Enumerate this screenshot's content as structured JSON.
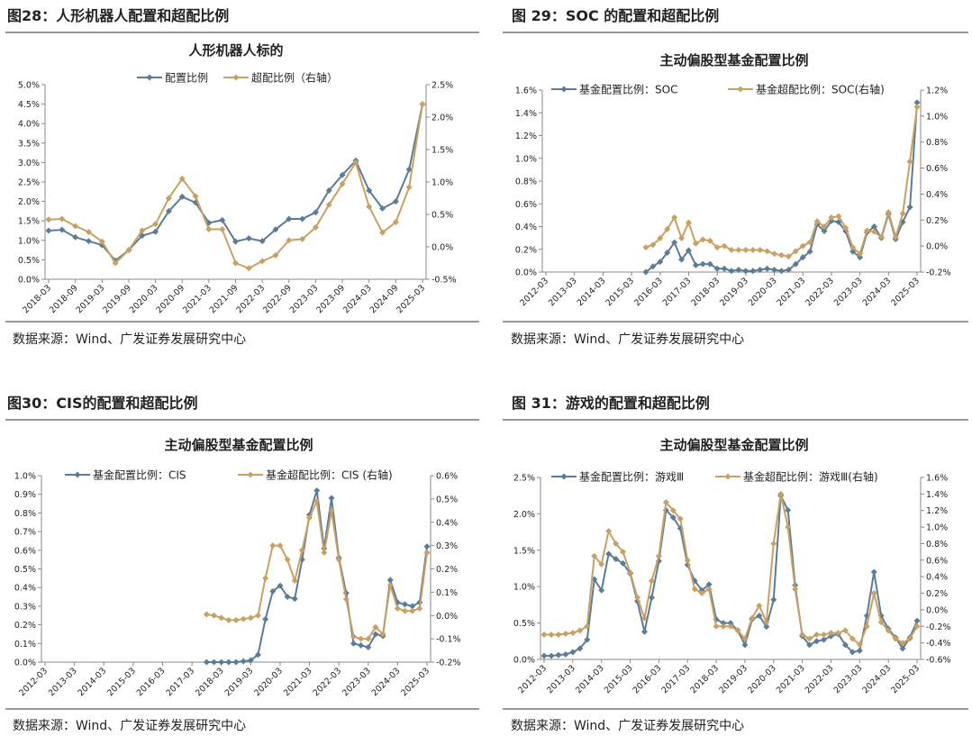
{
  "chart_data": [
    {
      "type": "line",
      "heading": "图28：人形机器人配置和超配比例",
      "title": "人形机器人标的",
      "source": "数据来源：Wind、广发证券发展研究中心",
      "categories": [
        "2018-03",
        null,
        "2018-09",
        null,
        "2019-03",
        null,
        "2019-09",
        null,
        "2020-03",
        null,
        "2020-09",
        null,
        "2021-03",
        null,
        "2021-09",
        null,
        "2022-03",
        null,
        "2022-09",
        null,
        "2023-03",
        null,
        "2023-09",
        null,
        "2024-03",
        null,
        "2024-09",
        null,
        "2025-03"
      ],
      "series": [
        {
          "name": "配置比例",
          "color": "#5b7c99",
          "values": [
            1.25,
            1.27,
            1.08,
            0.98,
            0.88,
            0.48,
            0.75,
            1.12,
            1.22,
            1.75,
            2.12,
            1.97,
            1.45,
            1.52,
            0.97,
            1.05,
            0.98,
            1.28,
            1.55,
            1.55,
            1.72,
            2.28,
            2.68,
            3.05,
            2.28,
            1.82,
            2.0,
            2.82,
            4.5
          ]
        },
        {
          "name": "超配比例（右轴）",
          "color": "#c9a063",
          "axis": "y2",
          "values": [
            0.42,
            0.43,
            0.32,
            0.23,
            0.08,
            -0.25,
            -0.05,
            0.25,
            0.35,
            0.75,
            1.05,
            0.78,
            0.27,
            0.27,
            -0.25,
            -0.33,
            -0.22,
            -0.13,
            0.1,
            0.12,
            0.3,
            0.65,
            0.97,
            1.3,
            0.62,
            0.22,
            0.38,
            0.92,
            2.2
          ]
        }
      ],
      "ylim": [
        0,
        5
      ],
      "yticks": [
        {
          "value": 0,
          "label": "0.0%"
        },
        {
          "value": 0.5,
          "label": "0.5%"
        },
        {
          "value": 1,
          "label": "1.0%"
        },
        {
          "value": 1.5,
          "label": "1.5%"
        },
        {
          "value": 2,
          "label": "2.0%"
        },
        {
          "value": 2.5,
          "label": "2.5%"
        },
        {
          "value": 3,
          "label": "3.0%"
        },
        {
          "value": 3.5,
          "label": "3.5%"
        },
        {
          "value": 4,
          "label": "4.0%"
        },
        {
          "value": 4.5,
          "label": "4.5%"
        },
        {
          "value": 5,
          "label": "5.0%"
        }
      ],
      "y2lim": [
        -0.5,
        2.5
      ],
      "y2ticks": [
        {
          "value": -0.5,
          "label": "-0.5%"
        },
        {
          "value": 0,
          "label": "0.0%"
        },
        {
          "value": 0.5,
          "label": "0.5%"
        },
        {
          "value": 1,
          "label": "1.0%"
        },
        {
          "value": 1.5,
          "label": "1.5%"
        },
        {
          "value": 2,
          "label": "2.0%"
        },
        {
          "value": 2.5,
          "label": "2.5%"
        }
      ]
    },
    {
      "type": "line",
      "heading": "图 29：SOC 的配置和超配比例",
      "title": "主动偏股型基金配置比例",
      "source": "数据来源：Wind、广发证券发展研究中心",
      "categories": [
        "2012-03",
        null,
        null,
        null,
        "2013-03",
        null,
        null,
        null,
        "2014-03",
        null,
        null,
        null,
        "2015-03",
        null,
        null,
        null,
        "2016-03",
        null,
        null,
        null,
        "2017-03",
        null,
        null,
        null,
        "2018-03",
        null,
        null,
        null,
        "2019-03",
        null,
        null,
        null,
        "2020-03",
        null,
        null,
        null,
        "2021-03",
        null,
        null,
        null,
        "2022-03",
        null,
        null,
        null,
        "2023-03",
        null,
        null,
        null,
        "2024-03",
        null,
        null,
        null,
        "2025-03"
      ],
      "series": [
        {
          "name": "基金配置比例：SOC",
          "color": "#5b7c99",
          "values": [
            null,
            null,
            null,
            null,
            null,
            null,
            null,
            null,
            null,
            null,
            null,
            null,
            null,
            null,
            0.0,
            0.05,
            0.09,
            0.17,
            0.26,
            0.11,
            0.19,
            0.06,
            0.07,
            0.07,
            0.03,
            0.03,
            0.01,
            0.02,
            0.01,
            0.01,
            0.02,
            0.03,
            0.02,
            0.01,
            0.02,
            0.07,
            0.13,
            0.18,
            0.42,
            0.36,
            0.45,
            0.44,
            0.36,
            0.18,
            0.13,
            0.35,
            0.4,
            0.3,
            0.51,
            0.29,
            0.44,
            0.57,
            1.49
          ]
        },
        {
          "name": "基金超配比例：SOC(右轴)",
          "color": "#c9a063",
          "axis": "y2",
          "values": [
            null,
            null,
            null,
            null,
            null,
            null,
            null,
            null,
            null,
            null,
            null,
            null,
            null,
            null,
            -0.01,
            0.01,
            0.06,
            0.13,
            0.22,
            0.06,
            0.18,
            0.02,
            0.05,
            0.04,
            -0.01,
            0.0,
            -0.03,
            -0.03,
            -0.03,
            -0.03,
            -0.03,
            -0.04,
            -0.06,
            -0.07,
            -0.08,
            -0.04,
            0.0,
            0.03,
            0.19,
            0.15,
            0.22,
            0.23,
            0.14,
            -0.01,
            -0.06,
            0.12,
            0.11,
            0.07,
            0.26,
            0.07,
            0.25,
            0.65,
            1.07
          ]
        }
      ],
      "ylim": [
        0,
        1.6
      ],
      "yticks": [
        {
          "value": 0,
          "label": "0.0%"
        },
        {
          "value": 0.2,
          "label": "0.2%"
        },
        {
          "value": 0.4,
          "label": "0.4%"
        },
        {
          "value": 0.6,
          "label": "0.6%"
        },
        {
          "value": 0.8,
          "label": "0.8%"
        },
        {
          "value": 1,
          "label": "1.0%"
        },
        {
          "value": 1.2,
          "label": "1.2%"
        },
        {
          "value": 1.4,
          "label": "1.4%"
        },
        {
          "value": 1.6,
          "label": "1.6%"
        }
      ],
      "y2lim": [
        -0.2,
        1.2
      ],
      "y2ticks": [
        {
          "value": -0.2,
          "label": "-0.2%"
        },
        {
          "value": 0,
          "label": "0.0%"
        },
        {
          "value": 0.2,
          "label": "0.2%"
        },
        {
          "value": 0.4,
          "label": "0.4%"
        },
        {
          "value": 0.6,
          "label": "0.6%"
        },
        {
          "value": 0.8,
          "label": "0.8%"
        },
        {
          "value": 1,
          "label": "1.0%"
        },
        {
          "value": 1.2,
          "label": "1.2%"
        }
      ]
    },
    {
      "type": "line",
      "heading": "图30：CIS的配置和超配比例",
      "title": "主动偏股型基金配置比例",
      "source": "数据来源：Wind、广发证券发展研究中心",
      "categories": [
        "2012-03",
        null,
        null,
        null,
        "2013-03",
        null,
        null,
        null,
        "2014-03",
        null,
        null,
        null,
        "2015-03",
        null,
        null,
        null,
        "2016-03",
        null,
        null,
        null,
        "2017-03",
        null,
        null,
        null,
        "2018-03",
        null,
        null,
        null,
        "2019-03",
        null,
        null,
        null,
        "2020-03",
        null,
        null,
        null,
        "2021-03",
        null,
        null,
        null,
        "2022-03",
        null,
        null,
        null,
        "2023-03",
        null,
        null,
        null,
        "2024-03",
        null,
        null,
        null,
        "2025-03"
      ],
      "series": [
        {
          "name": "基金配置比例：CIS",
          "color": "#5b7c99",
          "values": [
            null,
            null,
            null,
            null,
            null,
            null,
            null,
            null,
            null,
            null,
            null,
            null,
            null,
            null,
            null,
            null,
            null,
            null,
            null,
            null,
            null,
            null,
            0.0,
            0.0,
            0.0,
            0.0,
            0.0,
            0.005,
            0.01,
            0.04,
            0.23,
            0.38,
            0.41,
            0.35,
            0.34,
            0.55,
            0.79,
            0.92,
            0.61,
            0.88,
            0.56,
            0.37,
            0.1,
            0.09,
            0.08,
            0.15,
            0.14,
            0.44,
            0.32,
            0.31,
            0.3,
            0.32,
            0.62
          ]
        },
        {
          "name": "基金超配比例：CIS (右轴)",
          "color": "#c9a063",
          "axis": "y2",
          "values": [
            null,
            null,
            null,
            null,
            null,
            null,
            null,
            null,
            null,
            null,
            null,
            null,
            null,
            null,
            null,
            null,
            null,
            null,
            null,
            null,
            null,
            null,
            0.005,
            0.0,
            -0.01,
            -0.02,
            -0.02,
            -0.015,
            -0.01,
            0.0,
            0.16,
            0.3,
            0.3,
            0.24,
            0.15,
            0.28,
            0.42,
            0.49,
            0.27,
            0.45,
            0.24,
            0.07,
            -0.09,
            -0.1,
            -0.1,
            -0.05,
            -0.08,
            0.13,
            0.03,
            0.02,
            0.02,
            0.03,
            0.27
          ]
        }
      ],
      "ylim": [
        0,
        1
      ],
      "yticks": [
        {
          "value": 0,
          "label": "0.0%"
        },
        {
          "value": 0.1,
          "label": "0.1%"
        },
        {
          "value": 0.2,
          "label": "0.2%"
        },
        {
          "value": 0.3,
          "label": "0.3%"
        },
        {
          "value": 0.4,
          "label": "0.4%"
        },
        {
          "value": 0.5,
          "label": "0.5%"
        },
        {
          "value": 0.6,
          "label": "0.6%"
        },
        {
          "value": 0.7,
          "label": "0.7%"
        },
        {
          "value": 0.8,
          "label": "0.8%"
        },
        {
          "value": 0.9,
          "label": "0.9%"
        },
        {
          "value": 1,
          "label": "1.0%"
        }
      ],
      "y2lim": [
        -0.2,
        0.6
      ],
      "y2ticks": [
        {
          "value": -0.2,
          "label": "-0.2%"
        },
        {
          "value": -0.1,
          "label": "-0.1%"
        },
        {
          "value": 0,
          "label": "0.0%"
        },
        {
          "value": 0.1,
          "label": "0.1%"
        },
        {
          "value": 0.2,
          "label": "0.2%"
        },
        {
          "value": 0.3,
          "label": "0.3%"
        },
        {
          "value": 0.4,
          "label": "0.4%"
        },
        {
          "value": 0.5,
          "label": "0.5%"
        },
        {
          "value": 0.6,
          "label": "0.6%"
        }
      ]
    },
    {
      "type": "line",
      "heading": "图 31：游戏的配置和超配比例",
      "title": "主动偏股型基金配置比例",
      "source": "数据来源：Wind、广发证券发展研究中心",
      "categories": [
        "2012-03",
        null,
        null,
        null,
        "2013-03",
        null,
        null,
        null,
        "2014-03",
        null,
        null,
        null,
        "2015-03",
        null,
        null,
        null,
        "2016-03",
        null,
        null,
        null,
        "2017-03",
        null,
        null,
        null,
        "2018-03",
        null,
        null,
        null,
        "2019-03",
        null,
        null,
        null,
        "2020-03",
        null,
        null,
        null,
        "2021-03",
        null,
        null,
        null,
        "2022-03",
        null,
        null,
        null,
        "2023-03",
        null,
        null,
        null,
        "2024-03",
        null,
        null,
        null,
        "2025-03"
      ],
      "series": [
        {
          "name": "基金配置比例：游戏Ⅲ",
          "color": "#5b7c99",
          "values": [
            0.05,
            0.05,
            0.06,
            0.07,
            0.1,
            0.15,
            0.27,
            1.1,
            0.95,
            1.45,
            1.38,
            1.32,
            1.18,
            0.8,
            0.38,
            0.85,
            1.35,
            2.05,
            1.95,
            1.8,
            1.3,
            1.08,
            0.95,
            1.03,
            0.55,
            0.5,
            0.5,
            0.4,
            0.2,
            0.55,
            0.6,
            0.45,
            0.82,
            2.25,
            2.05,
            1.02,
            0.32,
            0.2,
            0.25,
            0.27,
            0.32,
            0.35,
            0.2,
            0.1,
            0.12,
            0.6,
            1.2,
            0.6,
            0.42,
            0.3,
            0.15,
            0.3,
            0.53
          ]
        },
        {
          "name": "基金超配比例：游戏Ⅲ(右轴)",
          "color": "#c9a063",
          "axis": "y2",
          "values": [
            -0.3,
            -0.3,
            -0.3,
            -0.29,
            -0.28,
            -0.25,
            -0.2,
            0.65,
            0.55,
            0.95,
            0.8,
            0.7,
            0.45,
            0.15,
            -0.1,
            0.35,
            0.65,
            1.3,
            1.2,
            1.1,
            0.6,
            0.25,
            0.2,
            0.25,
            -0.2,
            -0.2,
            -0.2,
            -0.25,
            -0.35,
            -0.1,
            0.05,
            -0.15,
            0.8,
            1.4,
            1.0,
            0.25,
            -0.3,
            -0.35,
            -0.3,
            -0.3,
            -0.28,
            -0.28,
            -0.25,
            -0.35,
            -0.42,
            -0.2,
            0.2,
            -0.15,
            -0.25,
            -0.35,
            -0.4,
            -0.35,
            -0.2
          ]
        }
      ],
      "ylim": [
        0,
        2.5
      ],
      "yticks": [
        {
          "value": 0,
          "label": "0.0%"
        },
        {
          "value": 0.5,
          "label": "0.5%"
        },
        {
          "value": 1,
          "label": "1.0%"
        },
        {
          "value": 1.5,
          "label": "1.5%"
        },
        {
          "value": 2,
          "label": "2.0%"
        },
        {
          "value": 2.5,
          "label": "2.5%"
        }
      ],
      "y2lim": [
        -0.6,
        1.6
      ],
      "y2ticks": [
        {
          "value": -0.6,
          "label": "-0.6%"
        },
        {
          "value": -0.4,
          "label": "-0.4%"
        },
        {
          "value": -0.2,
          "label": "-0.2%"
        },
        {
          "value": 0,
          "label": "0.0%"
        },
        {
          "value": 0.2,
          "label": "0.2%"
        },
        {
          "value": 0.4,
          "label": "0.4%"
        },
        {
          "value": 0.6,
          "label": "0.6%"
        },
        {
          "value": 0.8,
          "label": "0.8%"
        },
        {
          "value": 1,
          "label": "1.0%"
        },
        {
          "value": 1.2,
          "label": "1.2%"
        },
        {
          "value": 1.4,
          "label": "1.4%"
        },
        {
          "value": 1.6,
          "label": "1.6%"
        }
      ]
    }
  ]
}
